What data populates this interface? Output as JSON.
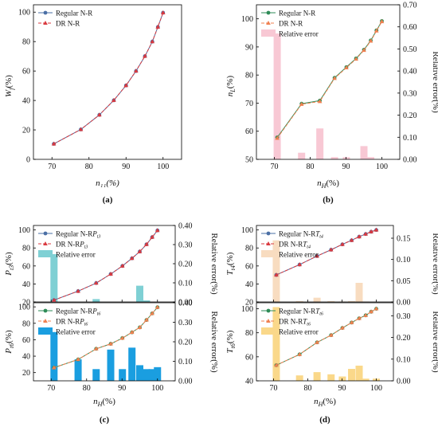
{
  "chart_data": [
    {
      "id": "a",
      "type": "line",
      "caption": "(a)",
      "xlabel": "n₁₁(%)",
      "ylabel": "W",
      "ylabel_sub": "f",
      "ylabel_unit": "(%)",
      "xlim": [
        65,
        105
      ],
      "ylim": [
        0,
        105
      ],
      "xticks": [
        70,
        80,
        90,
        100
      ],
      "yticks": [
        0,
        20,
        40,
        60,
        80,
        100
      ],
      "legend": "top-left",
      "x": [
        70.5,
        77.8,
        82.8,
        86.7,
        90.0,
        92.7,
        95.1,
        97.1,
        98.6,
        100.0
      ],
      "series": [
        {
          "name": "Regular N-R",
          "color": "#4a6fa5",
          "marker": "dot",
          "values": [
            10.5,
            20.3,
            30.2,
            40.1,
            50.2,
            60.0,
            70.1,
            80.0,
            89.9,
            99.6
          ]
        },
        {
          "name": "DR N-R",
          "color": "#d9393f",
          "marker": "triangle",
          "dash": true,
          "values": [
            10.5,
            20.3,
            30.2,
            40.1,
            50.2,
            60.0,
            70.1,
            80.0,
            89.9,
            99.6
          ]
        }
      ]
    },
    {
      "id": "b",
      "type": "line",
      "caption": "(b)",
      "xlabel": "n",
      "xlabel_sub": "H",
      "xlabel_unit": "(%)",
      "ylabel": "n",
      "ylabel_sub": "L",
      "ylabel_unit": "(%)",
      "y2label": "Relative error(%)",
      "xlim": [
        65,
        105
      ],
      "ylim": [
        50,
        105
      ],
      "y2lim": [
        0,
        0.7
      ],
      "xticks": [
        70,
        80,
        90,
        100
      ],
      "yticks": [
        50,
        60,
        70,
        80,
        90,
        100
      ],
      "y2ticks": [
        "0.00",
        "0.10",
        "0.20",
        "0.30",
        "0.40",
        "0.50",
        "0.60",
        "0.70"
      ],
      "legend": "top-left",
      "x": [
        70.8,
        77.6,
        82.7,
        86.8,
        90.1,
        92.8,
        95.0,
        96.9,
        98.5,
        100.0
      ],
      "series": [
        {
          "name": "Regular N-R",
          "color": "#2e8b57",
          "marker": "dot",
          "values": [
            57.8,
            69.8,
            70.9,
            79.0,
            82.8,
            85.9,
            89.0,
            92.3,
            95.9,
            99.2
          ]
        },
        {
          "name": "DR N-R",
          "color": "#f08050",
          "marker": "triangle",
          "dash": true,
          "values": [
            57.5,
            69.6,
            70.6,
            78.8,
            82.6,
            85.7,
            88.8,
            92.1,
            95.7,
            99.0
          ]
        }
      ],
      "bars": {
        "name": "Relative error",
        "color": "#f8c8d4",
        "values": [
          0.57,
          0.03,
          0.14,
          0.01,
          0.01,
          0.0,
          0.06,
          0.01,
          0.0,
          0.0
        ]
      }
    },
    {
      "id": "c",
      "type": "line",
      "caption": "(c)",
      "xlabel": "n",
      "xlabel_sub": "H",
      "xlabel_unit": "(%)",
      "xlim": [
        65,
        105
      ],
      "xticks": [
        70,
        80,
        90,
        100
      ],
      "x": [
        70.8,
        77.6,
        82.7,
        86.8,
        90.1,
        92.8,
        95.0,
        96.9,
        98.5,
        100.0
      ],
      "panels": [
        {
          "ylabel": "P",
          "ylabel_sub": "t3",
          "ylabel_unit": "(%)",
          "ylim": [
            20,
            105
          ],
          "yticks": [
            20,
            40,
            60,
            80,
            100
          ],
          "y2label": "Relative error(%)",
          "y2lim": [
            0,
            0.4
          ],
          "y2ticks": [
            "0.00",
            "0.10",
            "0.20",
            "0.30",
            "0.40"
          ],
          "legend": "top-left",
          "series": [
            {
              "name": "Regular N-R",
              "name_sub": "P",
              "name_sub2": "t3",
              "color": "#4a6fa5",
              "marker": "dot",
              "values": [
                22.0,
                32.0,
                41.0,
                51.0,
                60.0,
                68.5,
                76.0,
                84.0,
                92.0,
                99.5
              ]
            },
            {
              "name": "DR N-R",
              "name_sub": "P",
              "name_sub2": "t3",
              "color": "#d9393f",
              "marker": "triangle",
              "dash": true,
              "values": [
                22.0,
                32.0,
                41.0,
                51.0,
                60.0,
                68.5,
                76.0,
                84.0,
                92.0,
                99.5
              ]
            }
          ],
          "bars": {
            "name": "Relative error",
            "color": "#7fd0d4",
            "values": [
              0.25,
              0.0,
              0.015,
              0.0,
              0.0,
              0.0,
              0.085,
              0.008,
              0.0,
              0.0
            ]
          }
        },
        {
          "ylabel": "P",
          "ylabel_sub": "t6",
          "ylabel_unit": "(%)",
          "ylim": [
            10,
            105
          ],
          "yticks": [
            20,
            40,
            60,
            80,
            100
          ],
          "y2label": "Relative error(%)",
          "y2lim": [
            0,
            0.4
          ],
          "y2ticks": [
            "0.00",
            "0.10",
            "0.20",
            "0.30",
            "0.40"
          ],
          "legend": "top-left",
          "series": [
            {
              "name": "Regular N-R",
              "name_sub": "P",
              "name_sub2": "t6",
              "color": "#2e8b57",
              "marker": "dot",
              "values": [
                26.0,
                36.0,
                49.0,
                55.0,
                62.0,
                69.0,
                75.0,
                84.0,
                92.0,
                99.5
              ]
            },
            {
              "name": "DR N-R",
              "name_sub": "P",
              "name_sub2": "t6",
              "color": "#f08050",
              "marker": "triangle",
              "dash": true,
              "values": [
                26.0,
                36.0,
                49.0,
                55.0,
                62.0,
                69.0,
                75.0,
                84.0,
                92.0,
                99.5
              ]
            }
          ],
          "bars": {
            "name": "Relative error",
            "color": "#1a9ee0",
            "values": [
              0.25,
              0.11,
              0.06,
              0.16,
              0.06,
              0.17,
              0.08,
              0.06,
              0.06,
              0.07
            ]
          }
        }
      ]
    },
    {
      "id": "d",
      "type": "line",
      "caption": "(d)",
      "xlabel": "n",
      "xlabel_sub": "H",
      "xlabel_unit": "(%)",
      "xlim": [
        65,
        105
      ],
      "xticks": [
        70,
        80,
        90,
        100
      ],
      "x": [
        70.8,
        77.6,
        82.7,
        86.8,
        90.1,
        92.8,
        95.0,
        96.9,
        98.5,
        100.0
      ],
      "panels": [
        {
          "ylabel": "T",
          "ylabel_sub": "t4",
          "ylabel_unit": "(%)",
          "ylim": [
            20,
            105
          ],
          "yticks": [
            20,
            40,
            60,
            80,
            100
          ],
          "y2label": "Relative error(%)",
          "y2lim": [
            0,
            0.18
          ],
          "y2ticks": [
            "0.00",
            "0.05",
            "0.10",
            "0.15"
          ],
          "legend": "top-left",
          "series": [
            {
              "name": "Regular N-R",
              "name_sub": "T",
              "name_sub2": "t4",
              "color": "#4a6fa5",
              "marker": "dot",
              "values": [
                50.0,
                61.5,
                71.0,
                78.0,
                84.0,
                88.5,
                92.5,
                95.5,
                98.0,
                100.0
              ]
            },
            {
              "name": "DR N-R",
              "name_sub": "T",
              "name_sub2": "t4",
              "color": "#d9393f",
              "marker": "triangle",
              "dash": true,
              "values": [
                50.0,
                61.5,
                71.0,
                78.0,
                84.0,
                88.5,
                92.5,
                95.5,
                98.0,
                100.0
              ]
            }
          ],
          "bars": {
            "name": "Relative error",
            "color": "#f8dcc0",
            "values": [
              0.145,
              0.002,
              0.01,
              0.002,
              0.001,
              0.002,
              0.045,
              0.001,
              0.0,
              0.0
            ]
          }
        },
        {
          "ylabel": "T",
          "ylabel_sub": "t6",
          "ylabel_unit": "(%)",
          "ylim": [
            40,
            105
          ],
          "yticks": [
            40,
            60,
            80,
            100
          ],
          "y2label": "Relative error(%)",
          "y2lim": [
            0,
            0.36
          ],
          "y2ticks": [
            "0.00",
            "0.10",
            "0.20",
            "0.30"
          ],
          "legend": "top-left",
          "series": [
            {
              "name": "Regular N-R",
              "name_sub": "T",
              "name_sub2": "t6",
              "color": "#2e8b57",
              "marker": "dot",
              "values": [
                53.0,
                62.0,
                72.0,
                78.0,
                84.0,
                88.5,
                92.0,
                94.5,
                97.5,
                100.0
              ]
            },
            {
              "name": "DR N-R",
              "name_sub": "T",
              "name_sub2": "t6",
              "color": "#f08050",
              "marker": "triangle",
              "dash": true,
              "values": [
                53.0,
                62.0,
                72.0,
                78.0,
                84.0,
                88.5,
                92.0,
                94.5,
                97.5,
                100.0
              ]
            }
          ],
          "bars": {
            "name": "Relative error",
            "color": "#fad88a",
            "values": [
              0.34,
              0.025,
              0.04,
              0.03,
              0.02,
              0.055,
              0.07,
              0.01,
              0.0,
              0.01
            ]
          }
        }
      ]
    }
  ]
}
